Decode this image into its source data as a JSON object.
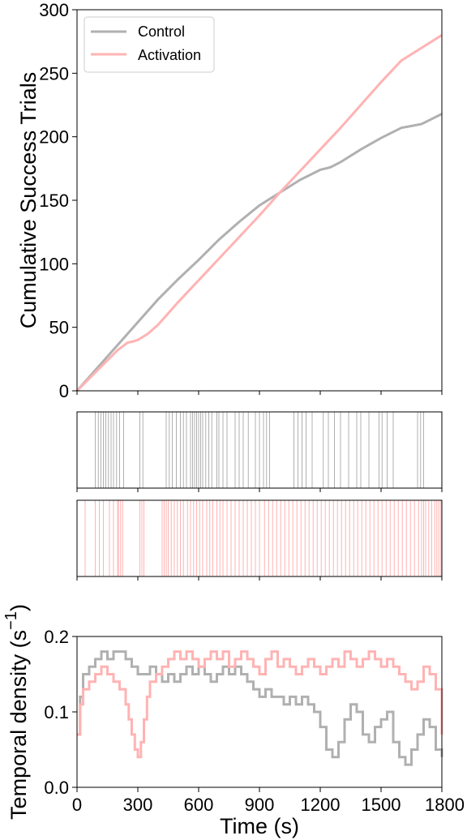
{
  "colors": {
    "control": "#b0b0b0",
    "activation": "#ffb3b3",
    "axis": "#000000"
  },
  "chart_data": [
    {
      "type": "line",
      "ylabel": "Cumulative Success Trials",
      "xlim": [
        0,
        1800
      ],
      "ylim": [
        0,
        300
      ],
      "yticks": [
        0,
        50,
        100,
        150,
        200,
        250,
        300
      ],
      "xticks": [
        0,
        300,
        600,
        900,
        1200,
        1500,
        1800
      ],
      "legend": {
        "placement": "top-left",
        "entries": [
          "Control",
          "Activation"
        ]
      },
      "series": [
        {
          "name": "Control",
          "x": [
            0,
            100,
            200,
            300,
            400,
            500,
            600,
            700,
            800,
            900,
            1000,
            1100,
            1200,
            1250,
            1300,
            1400,
            1500,
            1600,
            1700,
            1800
          ],
          "y": [
            0,
            18,
            36,
            54,
            72,
            88,
            103,
            119,
            133,
            146,
            156,
            166,
            174,
            176,
            180,
            190,
            199,
            207,
            210,
            218
          ]
        },
        {
          "name": "Activation",
          "x": [
            0,
            100,
            200,
            250,
            280,
            300,
            350,
            400,
            500,
            600,
            700,
            800,
            900,
            1000,
            1100,
            1200,
            1300,
            1400,
            1500,
            1600,
            1700,
            1800
          ],
          "y": [
            0,
            16,
            32,
            38,
            39,
            40,
            45,
            52,
            70,
            87,
            104,
            121,
            138,
            156,
            173,
            190,
            207,
            225,
            243,
            260,
            270,
            280
          ]
        }
      ]
    },
    {
      "type": "scatter",
      "subtype": "raster",
      "series_name": "Control",
      "xlim": [
        0,
        1800
      ],
      "events": [
        90,
        105,
        118,
        130,
        142,
        155,
        168,
        180,
        195,
        210,
        230,
        310,
        325,
        440,
        455,
        470,
        490,
        510,
        525,
        540,
        560,
        570,
        580,
        590,
        600,
        610,
        620,
        635,
        650,
        665,
        690,
        700,
        720,
        740,
        780,
        800,
        820,
        845,
        880,
        900,
        920,
        935,
        950,
        1070,
        1090,
        1110,
        1130,
        1160,
        1215,
        1240,
        1270,
        1300,
        1340,
        1380,
        1400,
        1440,
        1490,
        1505,
        1530,
        1560,
        1680,
        1695,
        1710
      ]
    },
    {
      "type": "scatter",
      "subtype": "raster",
      "series_name": "Activation",
      "xlim": [
        0,
        1800
      ],
      "events": [
        40,
        90,
        110,
        130,
        160,
        180,
        200,
        205,
        215,
        225,
        310,
        320,
        330,
        420,
        430,
        440,
        450,
        465,
        480,
        495,
        510,
        525,
        545,
        560,
        575,
        590,
        605,
        620,
        640,
        655,
        670,
        690,
        705,
        720,
        740,
        760,
        780,
        800,
        820,
        840,
        860,
        880,
        900,
        925,
        945,
        965,
        985,
        1005,
        1025,
        1045,
        1065,
        1085,
        1105,
        1125,
        1145,
        1165,
        1185,
        1205,
        1225,
        1245,
        1265,
        1285,
        1305,
        1325,
        1345,
        1365,
        1385,
        1405,
        1425,
        1445,
        1465,
        1485,
        1505,
        1525,
        1545,
        1565,
        1585,
        1605,
        1625,
        1645,
        1665,
        1685,
        1700,
        1710,
        1720,
        1735,
        1750,
        1765,
        1775,
        1785,
        1795
      ]
    },
    {
      "type": "line",
      "ylabel": "Temporal density (s",
      "ylabel_sup": "−1",
      "ylabel_close": ")",
      "xlabel": "Time (s)",
      "xlim": [
        0,
        1800
      ],
      "ylim": [
        0,
        0.2
      ],
      "yticks": [
        "0.0",
        "0.1",
        "0.2"
      ],
      "xticks": [
        0,
        300,
        600,
        900,
        1200,
        1500,
        1800
      ],
      "series": [
        {
          "name": "Control",
          "x": [
            0,
            15,
            30,
            60,
            90,
            120,
            150,
            180,
            210,
            240,
            270,
            300,
            330,
            360,
            390,
            420,
            450,
            480,
            510,
            540,
            570,
            600,
            630,
            660,
            690,
            720,
            750,
            780,
            810,
            840,
            870,
            900,
            930,
            960,
            990,
            1020,
            1050,
            1080,
            1110,
            1140,
            1170,
            1200,
            1230,
            1260,
            1290,
            1320,
            1350,
            1380,
            1410,
            1440,
            1470,
            1500,
            1530,
            1560,
            1590,
            1620,
            1650,
            1680,
            1710,
            1740,
            1770,
            1800
          ],
          "y": [
            0.07,
            0.12,
            0.15,
            0.16,
            0.17,
            0.18,
            0.17,
            0.18,
            0.18,
            0.17,
            0.16,
            0.15,
            0.15,
            0.16,
            0.15,
            0.14,
            0.15,
            0.14,
            0.15,
            0.16,
            0.15,
            0.16,
            0.15,
            0.14,
            0.15,
            0.16,
            0.15,
            0.16,
            0.15,
            0.14,
            0.13,
            0.12,
            0.13,
            0.12,
            0.12,
            0.11,
            0.12,
            0.11,
            0.12,
            0.11,
            0.1,
            0.08,
            0.05,
            0.04,
            0.06,
            0.09,
            0.11,
            0.1,
            0.07,
            0.06,
            0.08,
            0.09,
            0.1,
            0.06,
            0.04,
            0.03,
            0.05,
            0.07,
            0.09,
            0.08,
            0.05,
            0.04
          ]
        },
        {
          "name": "Activation",
          "x": [
            0,
            15,
            30,
            60,
            90,
            120,
            150,
            180,
            210,
            240,
            255,
            270,
            285,
            300,
            315,
            330,
            345,
            360,
            390,
            420,
            450,
            480,
            510,
            540,
            570,
            600,
            630,
            660,
            690,
            720,
            750,
            780,
            810,
            840,
            870,
            900,
            930,
            960,
            990,
            1020,
            1050,
            1080,
            1110,
            1140,
            1170,
            1200,
            1230,
            1260,
            1290,
            1320,
            1350,
            1380,
            1410,
            1440,
            1470,
            1500,
            1530,
            1560,
            1590,
            1620,
            1650,
            1680,
            1710,
            1740,
            1770,
            1800
          ],
          "y": [
            0.07,
            0.11,
            0.13,
            0.14,
            0.15,
            0.16,
            0.15,
            0.14,
            0.13,
            0.11,
            0.09,
            0.07,
            0.05,
            0.04,
            0.06,
            0.09,
            0.12,
            0.14,
            0.15,
            0.16,
            0.17,
            0.18,
            0.17,
            0.18,
            0.17,
            0.16,
            0.17,
            0.18,
            0.17,
            0.18,
            0.16,
            0.17,
            0.18,
            0.17,
            0.16,
            0.15,
            0.17,
            0.18,
            0.16,
            0.17,
            0.16,
            0.15,
            0.16,
            0.17,
            0.16,
            0.15,
            0.16,
            0.17,
            0.16,
            0.18,
            0.17,
            0.16,
            0.17,
            0.18,
            0.17,
            0.16,
            0.17,
            0.16,
            0.15,
            0.14,
            0.13,
            0.14,
            0.16,
            0.15,
            0.13,
            0.07
          ]
        }
      ]
    }
  ]
}
